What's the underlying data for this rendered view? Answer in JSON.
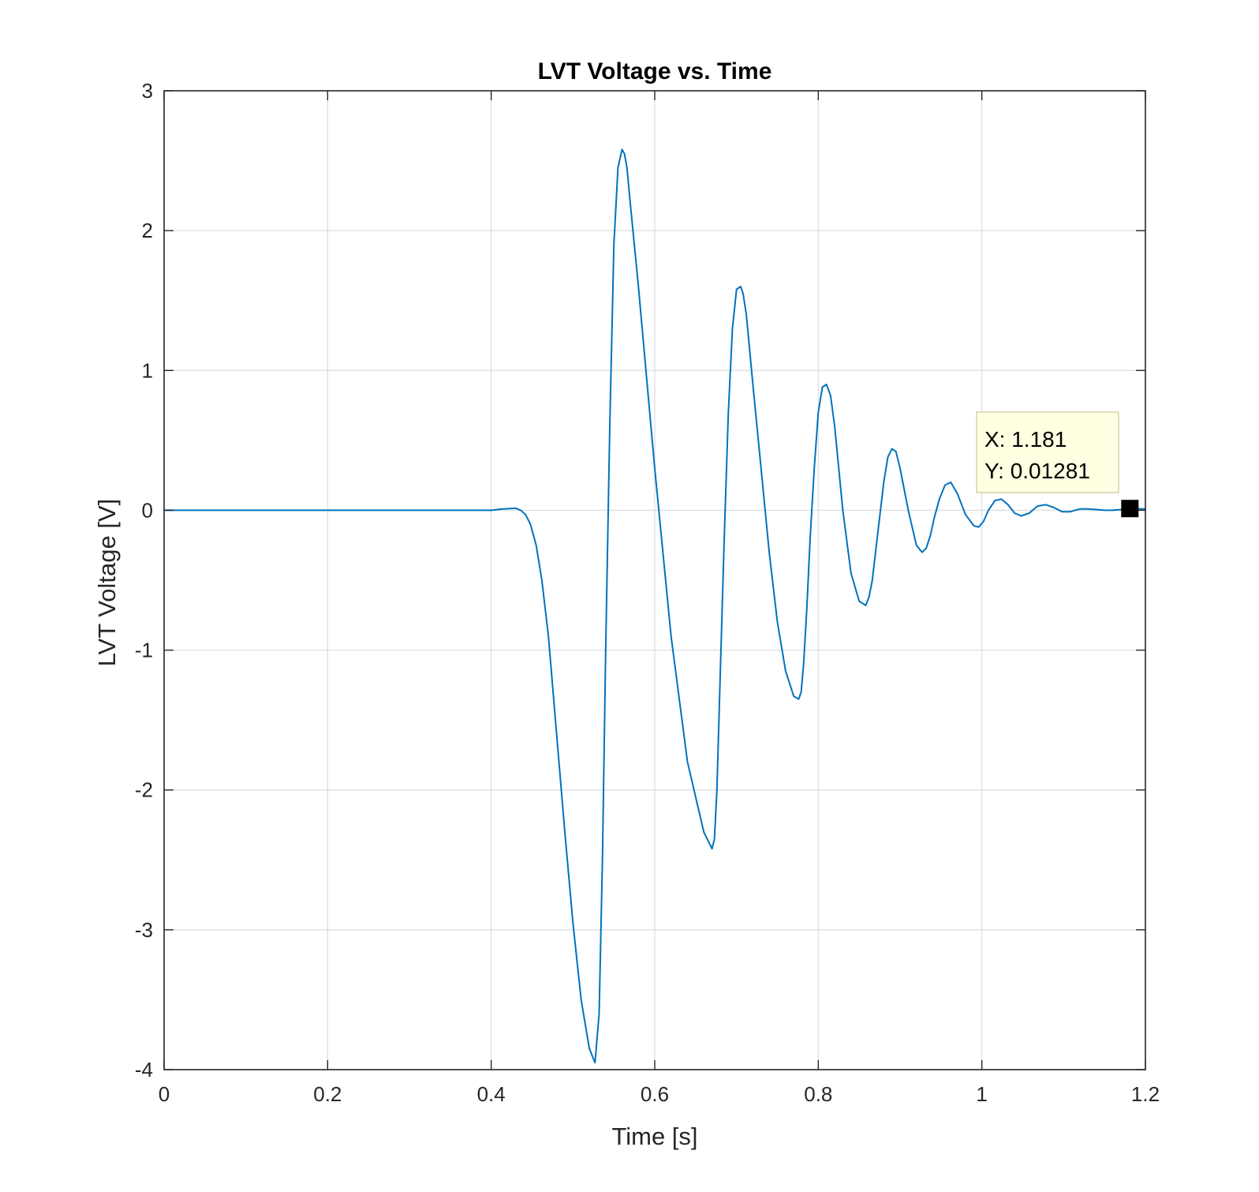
{
  "chart_data": {
    "type": "line",
    "title": "LVT Voltage vs. Time",
    "xlabel": "Time [s]",
    "ylabel": "LVT Voltage [V]",
    "xlim": [
      0,
      1.2
    ],
    "ylim": [
      -4,
      3
    ],
    "xticks": [
      0,
      0.2,
      0.4,
      0.6,
      0.8,
      1,
      1.2
    ],
    "xtick_labels": [
      "0",
      "0.2",
      "0.4",
      "0.6",
      "0.8",
      "1",
      "1.2"
    ],
    "yticks": [
      -4,
      -3,
      -2,
      -1,
      0,
      1,
      2,
      3
    ],
    "ytick_labels": [
      "-4",
      "-3",
      "-2",
      "-1",
      "0",
      "1",
      "2",
      "3"
    ],
    "grid": true,
    "series": [
      {
        "color": "#0072BD",
        "x": [
          0,
          0.1,
          0.2,
          0.3,
          0.4,
          0.415,
          0.43,
          0.436,
          0.442,
          0.448,
          0.455,
          0.462,
          0.47,
          0.48,
          0.49,
          0.5,
          0.51,
          0.52,
          0.527,
          0.532,
          0.536,
          0.54,
          0.545,
          0.55,
          0.555,
          0.56,
          0.563,
          0.566,
          0.57,
          0.58,
          0.6,
          0.62,
          0.64,
          0.66,
          0.67,
          0.673,
          0.676,
          0.68,
          0.685,
          0.69,
          0.695,
          0.7,
          0.705,
          0.708,
          0.712,
          0.72,
          0.73,
          0.74,
          0.75,
          0.76,
          0.77,
          0.776,
          0.779,
          0.782,
          0.786,
          0.79,
          0.795,
          0.8,
          0.805,
          0.81,
          0.815,
          0.82,
          0.83,
          0.84,
          0.85,
          0.858,
          0.862,
          0.866,
          0.87,
          0.875,
          0.88,
          0.885,
          0.89,
          0.895,
          0.9,
          0.91,
          0.92,
          0.927,
          0.932,
          0.937,
          0.942,
          0.948,
          0.955,
          0.962,
          0.97,
          0.98,
          0.99,
          0.996,
          1.002,
          1.008,
          1.016,
          1.024,
          1.032,
          1.04,
          1.048,
          1.058,
          1.068,
          1.078,
          1.088,
          1.098,
          1.108,
          1.12,
          1.13,
          1.14,
          1.15,
          1.16,
          1.17,
          1.181,
          1.2
        ],
        "y": [
          0.0,
          0.0,
          0.0,
          0.0,
          0.0,
          0.01,
          0.015,
          0.0,
          -0.03,
          -0.1,
          -0.25,
          -0.5,
          -0.9,
          -1.6,
          -2.3,
          -2.95,
          -3.5,
          -3.85,
          -3.95,
          -3.6,
          -2.5,
          -1.0,
          0.6,
          1.9,
          2.45,
          2.58,
          2.55,
          2.45,
          2.2,
          1.6,
          0.3,
          -0.9,
          -1.8,
          -2.3,
          -2.42,
          -2.35,
          -2.0,
          -1.2,
          -0.2,
          0.7,
          1.3,
          1.58,
          1.6,
          1.55,
          1.4,
          0.9,
          0.3,
          -0.3,
          -0.8,
          -1.15,
          -1.33,
          -1.35,
          -1.3,
          -1.1,
          -0.7,
          -0.2,
          0.3,
          0.7,
          0.88,
          0.9,
          0.82,
          0.6,
          0.0,
          -0.45,
          -0.65,
          -0.68,
          -0.62,
          -0.5,
          -0.3,
          -0.05,
          0.2,
          0.38,
          0.44,
          0.42,
          0.3,
          0.0,
          -0.25,
          -0.3,
          -0.27,
          -0.18,
          -0.05,
          0.08,
          0.18,
          0.2,
          0.12,
          -0.03,
          -0.11,
          -0.12,
          -0.08,
          0.0,
          0.07,
          0.08,
          0.04,
          -0.02,
          -0.04,
          -0.02,
          0.03,
          0.04,
          0.02,
          -0.01,
          -0.01,
          0.01,
          0.01,
          0.005,
          0.0,
          0.0,
          0.005,
          0.01281,
          0.01
        ]
      }
    ],
    "datatip": {
      "x": 1.181,
      "y": 0.01281,
      "x_label": "X: 1.181",
      "y_label": "Y: 0.01281"
    }
  }
}
